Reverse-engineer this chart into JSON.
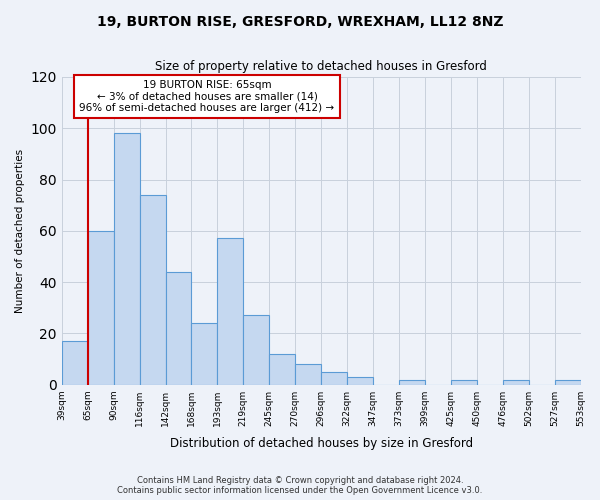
{
  "title": "19, BURTON RISE, GRESFORD, WREXHAM, LL12 8NZ",
  "subtitle": "Size of property relative to detached houses in Gresford",
  "xlabel": "Distribution of detached houses by size in Gresford",
  "ylabel": "Number of detached properties",
  "tick_labels": [
    "39sqm",
    "65sqm",
    "90sqm",
    "116sqm",
    "142sqm",
    "168sqm",
    "193sqm",
    "219sqm",
    "245sqm",
    "270sqm",
    "296sqm",
    "322sqm",
    "347sqm",
    "373sqm",
    "399sqm",
    "425sqm",
    "450sqm",
    "476sqm",
    "502sqm",
    "527sqm",
    "553sqm"
  ],
  "counts": [
    17,
    60,
    98,
    74,
    44,
    24,
    57,
    27,
    12,
    8,
    5,
    3,
    0,
    2,
    0,
    2,
    0,
    2,
    0,
    2
  ],
  "bar_color": "#c5d8f0",
  "bar_edge_color": "#5b9bd5",
  "highlight_bar_index": 1,
  "highlight_color": "#cc0000",
  "annotation_lines": [
    "19 BURTON RISE: 65sqm",
    "← 3% of detached houses are smaller (14)",
    "96% of semi-detached houses are larger (412) →"
  ],
  "annotation_box_color": "#ffffff",
  "annotation_box_edge": "#cc0000",
  "ylim": [
    0,
    120
  ],
  "yticks": [
    0,
    20,
    40,
    60,
    80,
    100,
    120
  ],
  "bg_color": "#eef2f9",
  "footer_line1": "Contains HM Land Registry data © Crown copyright and database right 2024.",
  "footer_line2": "Contains public sector information licensed under the Open Government Licence v3.0."
}
